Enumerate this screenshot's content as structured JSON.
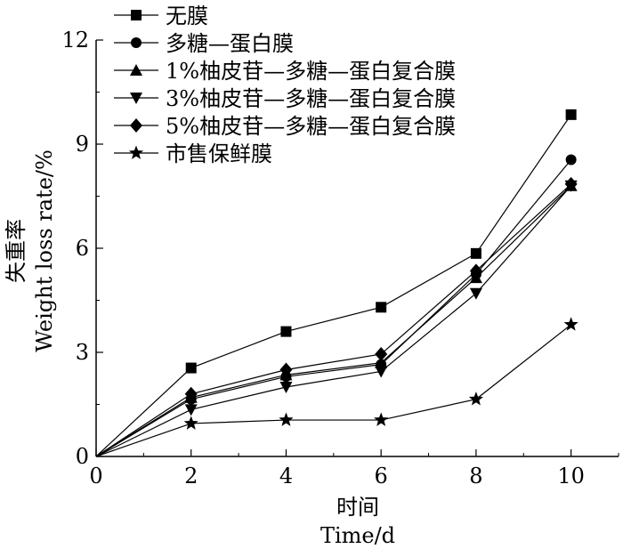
{
  "chart_data": {
    "type": "line",
    "title": "",
    "xlabel_cn": "时间",
    "xlabel_en": "Time/d",
    "ylabel_cn": "失重率",
    "ylabel_en": "Weight loss rate/%",
    "x": [
      0,
      2,
      4,
      6,
      8,
      10
    ],
    "xlim": [
      0,
      11
    ],
    "ylim": [
      0,
      12
    ],
    "xticks": [
      0,
      2,
      4,
      6,
      8,
      10
    ],
    "yticks": [
      0,
      3,
      6,
      9,
      12
    ],
    "grid": false,
    "legend_position": "top-left",
    "series": [
      {
        "name": "无膜",
        "marker": "square",
        "values": [
          0,
          2.55,
          3.6,
          4.3,
          5.85,
          9.85
        ]
      },
      {
        "name": "多糖—蛋白膜",
        "marker": "circle",
        "values": [
          0,
          1.65,
          2.3,
          2.65,
          5.25,
          8.55
        ]
      },
      {
        "name": "1%柚皮苷—多糖—蛋白复合膜",
        "marker": "triangle-up",
        "values": [
          0,
          1.7,
          2.35,
          2.7,
          5.15,
          7.8
        ]
      },
      {
        "name": "3%柚皮苷—多糖—蛋白复合膜",
        "marker": "triangle-down",
        "values": [
          0,
          1.35,
          2.0,
          2.45,
          4.7,
          7.8
        ]
      },
      {
        "name": "5%柚皮苷—多糖—蛋白复合膜",
        "marker": "diamond",
        "values": [
          0,
          1.8,
          2.5,
          2.95,
          5.35,
          7.85
        ]
      },
      {
        "name": "市售保鲜膜",
        "marker": "star",
        "values": [
          0,
          0.95,
          1.05,
          1.05,
          1.65,
          3.8
        ]
      }
    ]
  }
}
